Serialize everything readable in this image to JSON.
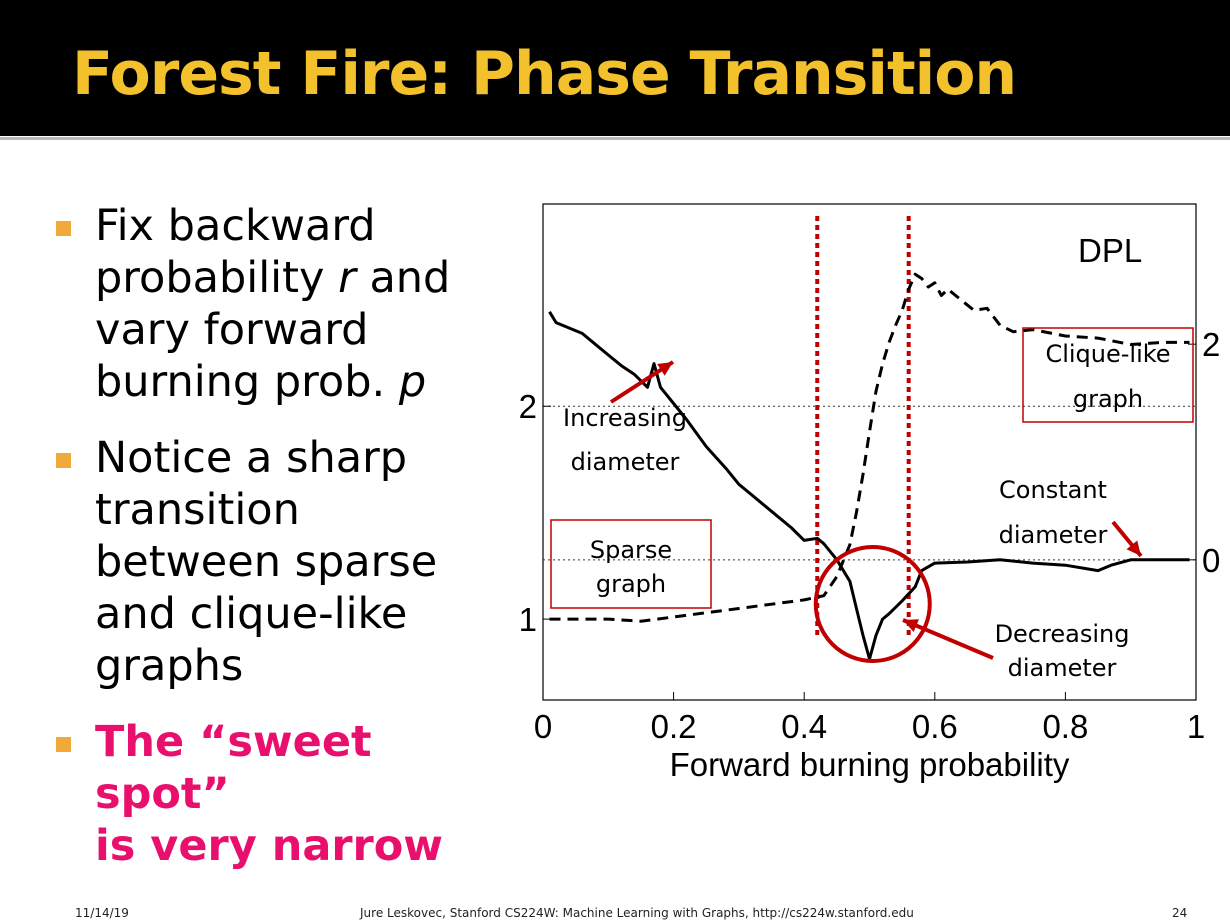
{
  "slide": {
    "title": "Forest Fire: Phase Transition",
    "title_color": "#f3c12c",
    "accent_color": "#f1a93b",
    "highlight_color": "#e8106c",
    "bullets": [
      {
        "lines": [
          "Fix backward",
          "probability |r| and",
          "vary forward",
          "burning prob. |p|"
        ]
      },
      {
        "lines": [
          "Notice a sharp",
          "transition",
          "between sparse",
          "and clique-like",
          "graphs"
        ]
      },
      {
        "lines": [
          "The “sweet spot”",
          "is very narrow"
        ],
        "highlight": true
      }
    ]
  },
  "footer": {
    "date": "11/14/19",
    "credit": "Jure Leskovec, Stanford CS224W: Machine Learning with Graphs, http://cs224w.stanford.edu",
    "page": "24"
  },
  "chart_data": {
    "type": "line",
    "xlabel": "Forward burning probability",
    "xlim": [
      0,
      1
    ],
    "x_ticks": [
      "0",
      "0.2",
      "0.4",
      "0.6",
      "0.8",
      "1"
    ],
    "left_axis": {
      "ticks": [
        {
          "value": 1,
          "label": "1"
        },
        {
          "value": 2,
          "label": "2"
        }
      ],
      "ylim": [
        0.62,
        2.95
      ]
    },
    "right_axis": {
      "ticks": [
        {
          "value": 0,
          "label": "0"
        },
        {
          "value": 2,
          "label": "2"
        }
      ],
      "ylim": [
        -1.3,
        3.3
      ]
    },
    "legend_label": "DPL",
    "series": [
      {
        "style": "dashed",
        "axis": "left",
        "x": [
          0.01,
          0.05,
          0.1,
          0.15,
          0.2,
          0.25,
          0.3,
          0.35,
          0.4,
          0.43,
          0.45,
          0.47,
          0.48,
          0.49,
          0.5,
          0.51,
          0.52,
          0.53,
          0.54,
          0.55,
          0.56,
          0.57,
          0.58,
          0.59,
          0.6,
          0.61,
          0.62,
          0.64,
          0.66,
          0.68,
          0.7,
          0.72,
          0.75,
          0.8,
          0.85,
          0.9,
          0.95,
          0.99
        ],
        "y": [
          1.0,
          1.0,
          1.0,
          0.99,
          1.01,
          1.03,
          1.05,
          1.07,
          1.09,
          1.11,
          1.2,
          1.35,
          1.5,
          1.68,
          1.88,
          2.07,
          2.2,
          2.3,
          2.38,
          2.45,
          2.55,
          2.62,
          2.6,
          2.56,
          2.58,
          2.52,
          2.55,
          2.5,
          2.45,
          2.46,
          2.38,
          2.35,
          2.36,
          2.33,
          2.32,
          2.29,
          2.3,
          2.3
        ]
      },
      {
        "style": "solid",
        "axis": "right",
        "x": [
          0.01,
          0.02,
          0.04,
          0.06,
          0.08,
          0.1,
          0.12,
          0.14,
          0.16,
          0.17,
          0.18,
          0.2,
          0.22,
          0.25,
          0.28,
          0.3,
          0.32,
          0.35,
          0.38,
          0.4,
          0.42,
          0.43,
          0.45,
          0.47,
          0.48,
          0.49,
          0.5,
          0.51,
          0.52,
          0.53,
          0.55,
          0.57,
          0.58,
          0.6,
          0.65,
          0.7,
          0.75,
          0.8,
          0.85,
          0.87,
          0.9,
          0.95,
          0.99
        ],
        "y": [
          2.3,
          2.2,
          2.15,
          2.1,
          2.0,
          1.9,
          1.8,
          1.72,
          1.6,
          1.82,
          1.6,
          1.45,
          1.3,
          1.05,
          0.85,
          0.7,
          0.6,
          0.45,
          0.3,
          0.18,
          0.2,
          0.15,
          0.0,
          -0.2,
          -0.45,
          -0.7,
          -0.92,
          -0.7,
          -0.55,
          -0.5,
          -0.38,
          -0.25,
          -0.1,
          -0.03,
          -0.02,
          0.0,
          -0.03,
          -0.05,
          -0.1,
          -0.05,
          0.0,
          0.0,
          0.0
        ]
      }
    ],
    "reference_lines": {
      "vertical_x": [
        0.42,
        0.56
      ]
    },
    "annotations": [
      {
        "lines": [
          "Increasing",
          "diameter"
        ]
      },
      {
        "lines": [
          "Sparse",
          "graph"
        ],
        "boxed": true
      },
      {
        "lines": [
          "Clique-like",
          "graph"
        ],
        "boxed": true
      },
      {
        "lines": [
          "Constant",
          "diameter"
        ]
      },
      {
        "lines": [
          "Decreasing",
          "diameter"
        ]
      }
    ]
  }
}
